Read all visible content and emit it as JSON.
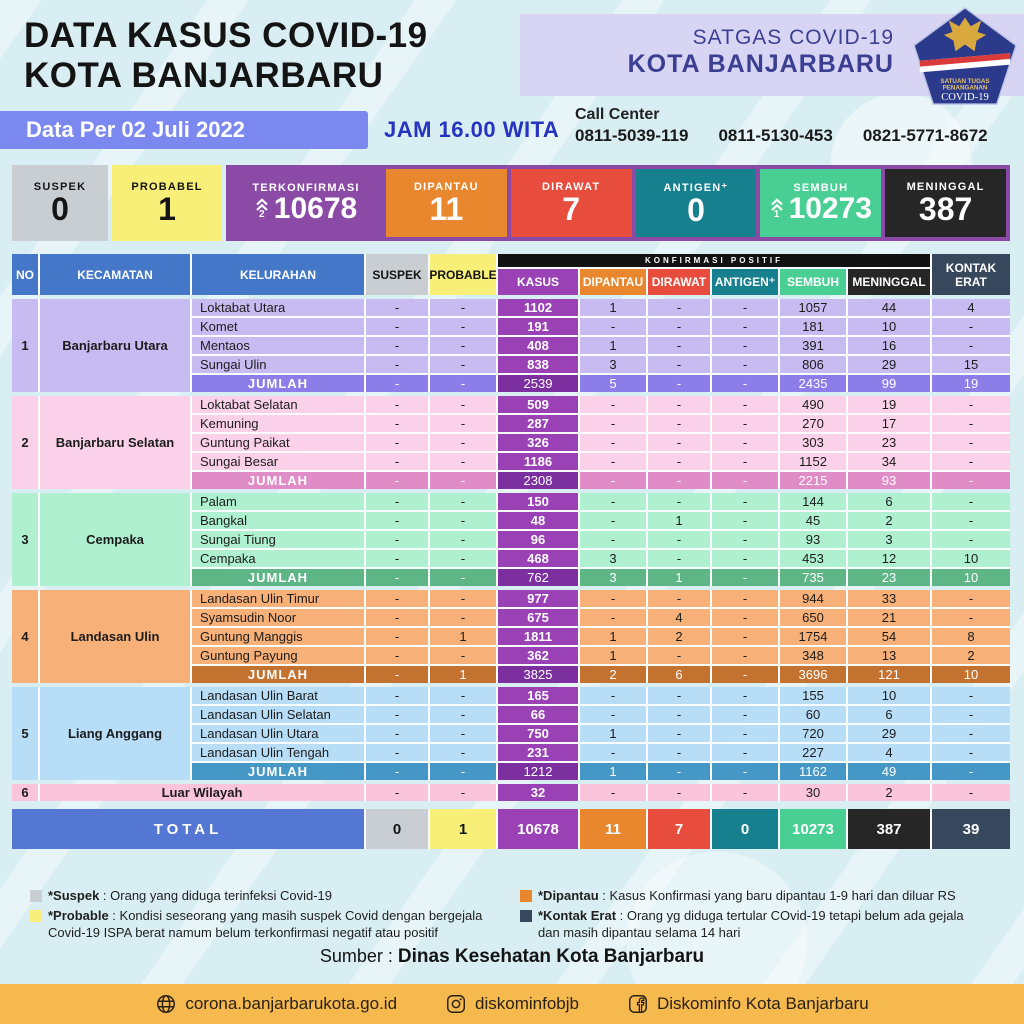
{
  "header": {
    "title_line1": "DATA KASUS COVID-19",
    "title_line2": "KOTA BANJARBARU",
    "satgas_line1": "SATGAS COVID-19",
    "satgas_line2": "KOTA BANJARBARU",
    "logo": {
      "top": "SATUAN TUGAS",
      "mid": "PENANGANAN",
      "bottom": "COVID-19"
    },
    "date_label": "Data Per 02 Juli 2022",
    "time_label": "JAM 16.00 WITA",
    "call_center_label": "Call Center",
    "call_numbers": [
      "0811-5039-119",
      "0811-5130-453",
      "0821-5771-8672"
    ]
  },
  "stats": [
    {
      "label": "SUSPEK",
      "value": "0"
    },
    {
      "label": "PROBABEL",
      "value": "1"
    },
    {
      "label": "TERKONFIRMASI",
      "value": "10678",
      "increase": "2"
    },
    {
      "label": "DIPANTAU",
      "value": "11"
    },
    {
      "label": "DIRAWAT",
      "value": "7"
    },
    {
      "label": "ANTIGEN⁺",
      "value": "0"
    },
    {
      "label": "SEMBUH",
      "value": "10273",
      "increase": "1"
    },
    {
      "label": "MENINGGAL",
      "value": "387"
    }
  ],
  "colors": {
    "suspek": "#c9ced3",
    "probable": "#f8ef78",
    "kasus": "#9a41b5",
    "dipantau": "#e8872e",
    "dirawat": "#e74c3c",
    "antigen": "#17808e",
    "sembuh": "#49cf94",
    "meninggal": "#262626",
    "kontak_erat": "#37485c",
    "header_blue": "#4577c8",
    "total_blue": "#5377d2",
    "terkonfirmasi_wrap": "#8b4aa6",
    "footer_bar": "#f6b94e",
    "date_bar": "#7b88f0"
  },
  "table": {
    "headers": [
      "NO",
      "KECAMATAN",
      "KELURAHAN",
      "SUSPEK",
      "PROBABLE",
      "KASUS",
      "DIPANTAU",
      "DIRAWAT",
      "ANTIGEN⁺",
      "SEMBUH",
      "MENINGGAL",
      "KONTAK ERAT"
    ],
    "konfirmasi_banner": "KONFIRMASI POSITIF",
    "jumlah_label": "JUMLAH",
    "total_label": "TOTAL",
    "groups": [
      {
        "no": "1",
        "kecamatan": "Banjarbaru Utara",
        "body_color": "#c7bbf1",
        "dark_color": "#8d7de8",
        "rows": [
          {
            "kelurahan": "Loktabat Utara",
            "values": [
              "-",
              "-",
              "1102",
              "1",
              "-",
              "-",
              "1057",
              "44",
              "4"
            ]
          },
          {
            "kelurahan": "Komet",
            "values": [
              "-",
              "-",
              "191",
              "-",
              "-",
              "-",
              "181",
              "10",
              "-"
            ]
          },
          {
            "kelurahan": "Mentaos",
            "values": [
              "-",
              "-",
              "408",
              "1",
              "-",
              "-",
              "391",
              "16",
              "-"
            ]
          },
          {
            "kelurahan": "Sungai Ulin",
            "values": [
              "-",
              "-",
              "838",
              "3",
              "-",
              "-",
              "806",
              "29",
              "15"
            ]
          }
        ],
        "jumlah": [
          "-",
          "-",
          "2539",
          "5",
          "-",
          "-",
          "2435",
          "99",
          "19"
        ]
      },
      {
        "no": "2",
        "kecamatan": "Banjarbaru Selatan",
        "body_color": "#fad1e8",
        "dark_color": "#e08cc6",
        "rows": [
          {
            "kelurahan": "Loktabat Selatan",
            "values": [
              "-",
              "-",
              "509",
              "-",
              "-",
              "-",
              "490",
              "19",
              "-"
            ]
          },
          {
            "kelurahan": "Kemuning",
            "values": [
              "-",
              "-",
              "287",
              "-",
              "-",
              "-",
              "270",
              "17",
              "-"
            ]
          },
          {
            "kelurahan": "Guntung Paikat",
            "values": [
              "-",
              "-",
              "326",
              "-",
              "-",
              "-",
              "303",
              "23",
              "-"
            ]
          },
          {
            "kelurahan": "Sungai Besar",
            "values": [
              "-",
              "-",
              "1186",
              "-",
              "-",
              "-",
              "1152",
              "34",
              "-"
            ]
          }
        ],
        "jumlah": [
          "-",
          "-",
          "2308",
          "-",
          "-",
          "-",
          "2215",
          "93",
          "-"
        ]
      },
      {
        "no": "3",
        "kecamatan": "Cempaka",
        "body_color": "#aef0d0",
        "dark_color": "#5eb687",
        "rows": [
          {
            "kelurahan": "Palam",
            "values": [
              "-",
              "-",
              "150",
              "-",
              "-",
              "-",
              "144",
              "6",
              "-"
            ]
          },
          {
            "kelurahan": "Bangkal",
            "values": [
              "-",
              "-",
              "48",
              "-",
              "1",
              "-",
              "45",
              "2",
              "-"
            ]
          },
          {
            "kelurahan": "Sungai Tiung",
            "values": [
              "-",
              "-",
              "96",
              "-",
              "-",
              "-",
              "93",
              "3",
              "-"
            ]
          },
          {
            "kelurahan": "Cempaka",
            "values": [
              "-",
              "-",
              "468",
              "3",
              "-",
              "-",
              "453",
              "12",
              "10"
            ]
          }
        ],
        "jumlah": [
          "-",
          "-",
          "762",
          "3",
          "1",
          "-",
          "735",
          "23",
          "10"
        ]
      },
      {
        "no": "4",
        "kecamatan": "Landasan Ulin",
        "body_color": "#f7b078",
        "dark_color": "#c4722f",
        "rows": [
          {
            "kelurahan": "Landasan Ulin Timur",
            "values": [
              "-",
              "-",
              "977",
              "-",
              "-",
              "-",
              "944",
              "33",
              "-"
            ]
          },
          {
            "kelurahan": "Syamsudin Noor",
            "values": [
              "-",
              "-",
              "675",
              "-",
              "4",
              "-",
              "650",
              "21",
              "-"
            ]
          },
          {
            "kelurahan": "Guntung Manggis",
            "values": [
              "-",
              "1",
              "1811",
              "1",
              "2",
              "-",
              "1754",
              "54",
              "8"
            ]
          },
          {
            "kelurahan": "Guntung Payung",
            "values": [
              "-",
              "-",
              "362",
              "1",
              "-",
              "-",
              "348",
              "13",
              "2"
            ]
          }
        ],
        "jumlah": [
          "-",
          "1",
          "3825",
          "2",
          "6",
          "-",
          "3696",
          "121",
          "10"
        ]
      },
      {
        "no": "5",
        "kecamatan": "Liang Anggang",
        "body_color": "#b7ddf7",
        "dark_color": "#4597c6",
        "rows": [
          {
            "kelurahan": "Landasan Ulin Barat",
            "values": [
              "-",
              "-",
              "165",
              "-",
              "-",
              "-",
              "155",
              "10",
              "-"
            ]
          },
          {
            "kelurahan": "Landasan Ulin Selatan",
            "values": [
              "-",
              "-",
              "66",
              "-",
              "-",
              "-",
              "60",
              "6",
              "-"
            ]
          },
          {
            "kelurahan": "Landasan Ulin Utara",
            "values": [
              "-",
              "-",
              "750",
              "1",
              "-",
              "-",
              "720",
              "29",
              "-"
            ]
          },
          {
            "kelurahan": "Landasan Ulin Tengah",
            "values": [
              "-",
              "-",
              "231",
              "-",
              "-",
              "-",
              "227",
              "4",
              "-"
            ]
          }
        ],
        "jumlah": [
          "-",
          "-",
          "1212",
          "1",
          "-",
          "-",
          "1162",
          "49",
          "-"
        ]
      }
    ],
    "luar_wilayah": {
      "no": "6",
      "label": "Luar Wilayah",
      "body_color": "#fac5da",
      "values": [
        "-",
        "-",
        "32",
        "-",
        "-",
        "-",
        "30",
        "2",
        "-"
      ]
    },
    "total": [
      "0",
      "1",
      "10678",
      "11",
      "7",
      "0",
      "10273",
      "387",
      "39"
    ]
  },
  "footnotes": [
    {
      "icon": "suspek-swatch",
      "term": "*Suspek",
      "desc": " : Orang yang diduga terinfeksi Covid-19"
    },
    {
      "icon": "probable-swatch",
      "term": "*Probable",
      "desc": " : Kondisi seseorang yang masih suspek Covid dengan bergejala Covid-19 ISPA berat namum belum terkonfirmasi negatif atau positif"
    },
    {
      "icon": "dipantau-swatch",
      "term": "*Dipantau",
      "desc": " : Kasus Konfirmasi yang baru dipantau 1-9 hari dan diluar RS"
    },
    {
      "icon": "kontak-erat-swatch",
      "term": "*Kontak Erat",
      "desc": " : Orang yg diduga tertular COvid-19 tetapi belum ada gejala dan masih dipantau selama 14 hari"
    }
  ],
  "source": {
    "label": "Sumber : ",
    "value": "Dinas Kesehatan Kota Banjarbaru"
  },
  "footer": {
    "items": [
      {
        "icon": "globe-icon",
        "text": "corona.banjarbarukota.go.id"
      },
      {
        "icon": "instagram-icon",
        "text": "diskominfobjb"
      },
      {
        "icon": "facebook-icon",
        "text": "Diskominfo Kota Banjarbaru"
      }
    ]
  }
}
